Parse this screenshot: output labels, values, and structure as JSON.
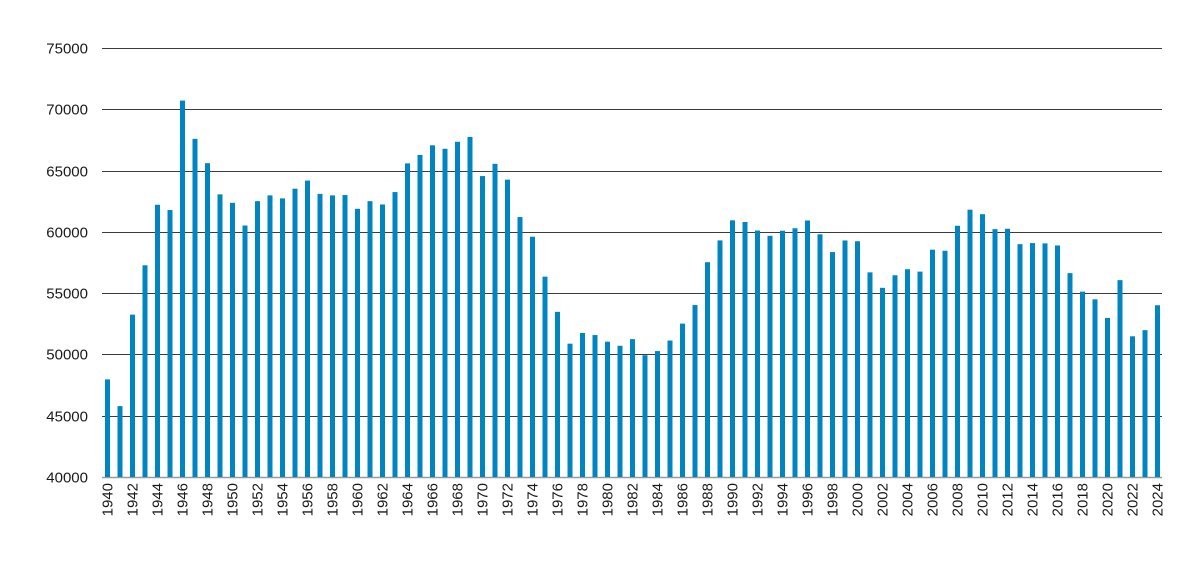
{
  "chart_data": {
    "type": "bar",
    "title": "",
    "xlabel": "",
    "ylabel": "",
    "ylim": [
      40000,
      75000
    ],
    "yticks": [
      40000,
      45000,
      50000,
      55000,
      60000,
      65000,
      70000,
      75000
    ],
    "grid": true,
    "legend": "none",
    "bar_color": "#0085c0",
    "grid_color": "#3c3c3c",
    "categories": [
      1940,
      1941,
      1942,
      1943,
      1944,
      1945,
      1946,
      1947,
      1948,
      1949,
      1950,
      1951,
      1952,
      1953,
      1954,
      1955,
      1956,
      1957,
      1958,
      1959,
      1960,
      1961,
      1962,
      1963,
      1964,
      1965,
      1966,
      1967,
      1968,
      1969,
      1970,
      1971,
      1972,
      1973,
      1974,
      1975,
      1976,
      1977,
      1978,
      1979,
      1980,
      1981,
      1982,
      1983,
      1984,
      1985,
      1986,
      1987,
      1988,
      1989,
      1990,
      1991,
      1992,
      1993,
      1994,
      1995,
      1996,
      1997,
      1998,
      1999,
      2000,
      2001,
      2002,
      2003,
      2004,
      2005,
      2006,
      2007,
      2008,
      2009,
      2010,
      2011,
      2012,
      2013,
      2014,
      2015,
      2016,
      2017,
      2018,
      2019,
      2020,
      2021,
      2022,
      2023,
      2024
    ],
    "values": [
      47964,
      45783,
      53247,
      57272,
      62211,
      61780,
      70713,
      67588,
      65602,
      63059,
      62368,
      60518,
      62505,
      62976,
      62731,
      63522,
      64183,
      63096,
      62976,
      63002,
      61880,
      62504,
      62236,
      63247,
      65589,
      66277,
      67061,
      66779,
      67350,
      67746,
      64551,
      65550,
      64260,
      61208,
      59603,
      56345,
      53474,
      50877,
      51749,
      51580,
      51039,
      50708,
      51245,
      49937,
      50274,
      51134,
      52514,
      54027,
      57526,
      59303,
      60939,
      60808,
      60109,
      59678,
      60092,
      60292,
      60927,
      59801,
      58352,
      59298,
      59234,
      56696,
      55434,
      56458,
      56951,
      56756,
      58545,
      58459,
      60497,
      61807,
      61442,
      60220,
      60255,
      58995,
      59084,
      59058,
      58890,
      56633,
      55120,
      54495,
      52979,
      56060,
      51480,
      51980,
      54013
    ],
    "xtick_labels": [
      "1940",
      "1942",
      "1944",
      "1946",
      "1948",
      "1950",
      "1952",
      "1954",
      "1956",
      "1958",
      "1960",
      "1962",
      "1964",
      "1966",
      "1968",
      "1970",
      "1972",
      "1974",
      "1976",
      "1978",
      "1980",
      "1982",
      "1984",
      "1986",
      "1988",
      "1990",
      "1992",
      "1994",
      "1996",
      "1998",
      "2000",
      "2002",
      "2004",
      "2006",
      "2008",
      "2010",
      "2012",
      "2014",
      "2016",
      "2018",
      "2020",
      "2022",
      "2024"
    ]
  }
}
